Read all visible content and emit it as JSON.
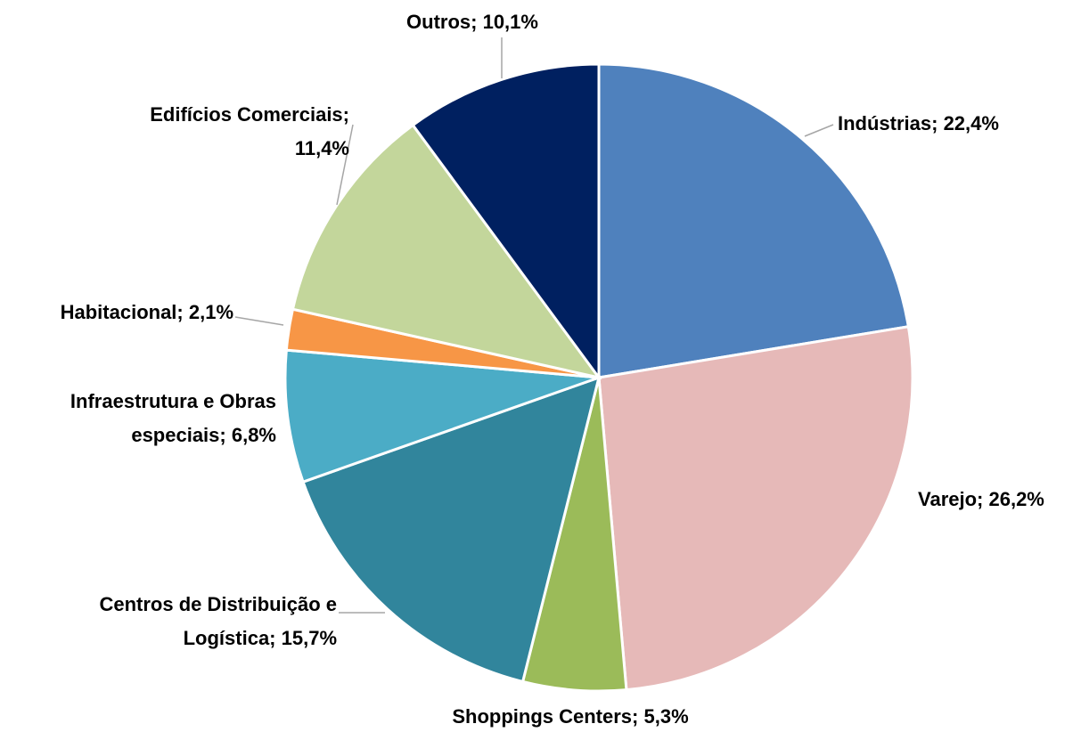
{
  "chart_data": {
    "type": "pie",
    "values": [
      22.4,
      26.2,
      5.3,
      15.7,
      6.8,
      2.1,
      11.4,
      10.1
    ],
    "value_labels": [
      "Indústrias; 22,4%",
      "Varejo; 26,2%",
      "Shoppings Centers; 5,3%",
      "Centros de Distribuição e\nLogística; 15,7%",
      "Infraestrutura e Obras\nespeciais; 6,8%",
      "Habitacional; 2,1%",
      "Edifícios Comerciais;\n11,4%",
      "Outros; 10,1%"
    ],
    "colors": [
      "#4f81bd",
      "#e6b9b8",
      "#9bbb59",
      "#31859c",
      "#4bacc6",
      "#f79646",
      "#c3d69b",
      "#002060"
    ]
  }
}
